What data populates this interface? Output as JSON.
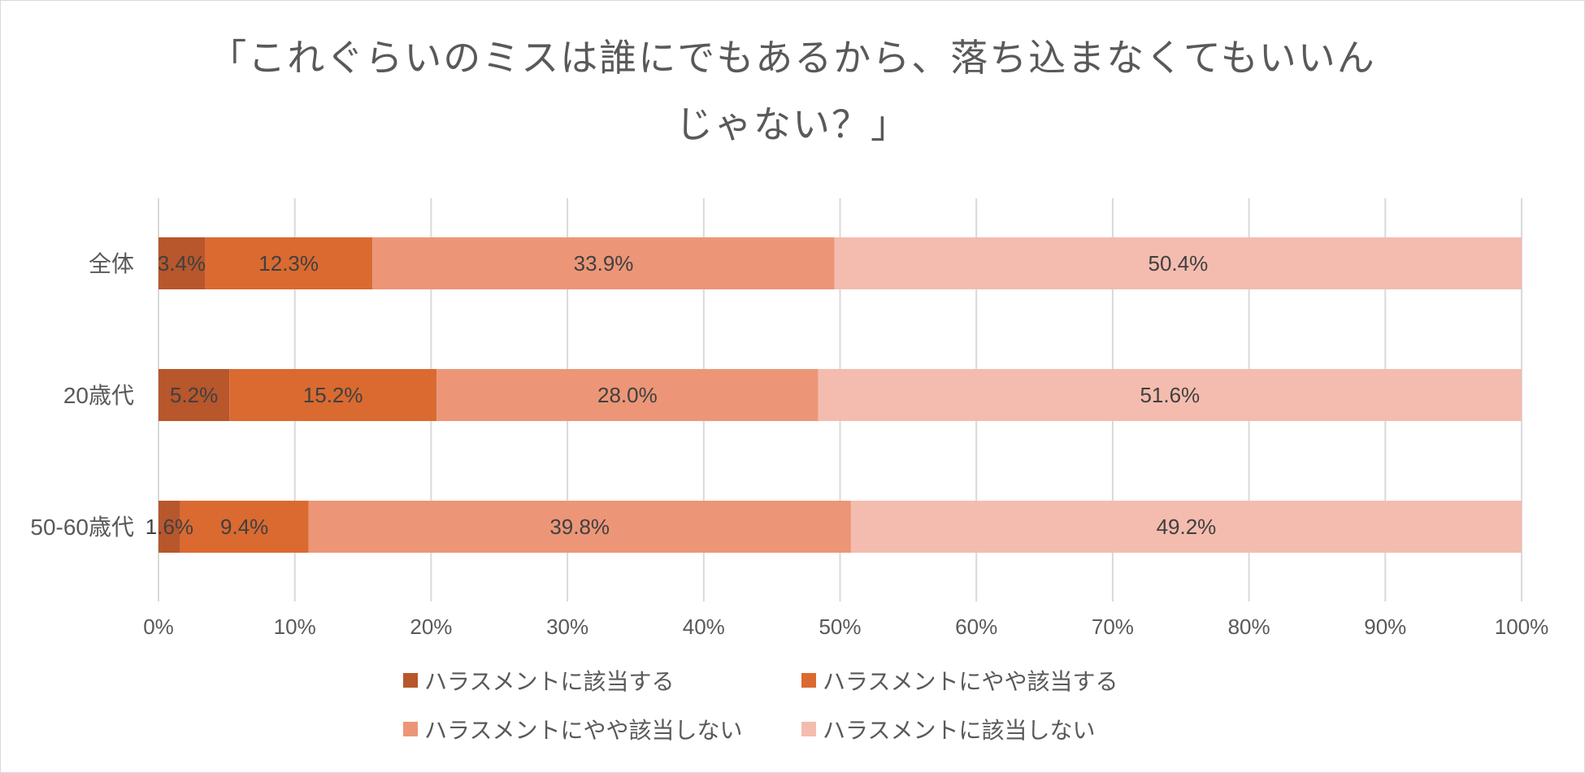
{
  "chart_data": {
    "type": "bar",
    "orientation": "horizontal",
    "stacked": "percent",
    "title_lines": [
      "「これぐらいのミスは誰にでもあるから、落ち込まなくてもいいん",
      "じゃない？」"
    ],
    "categories": [
      "全体",
      "20歳代",
      "50-60歳代"
    ],
    "series": [
      {
        "name": "ハラスメントに該当する",
        "color": "#b8562c",
        "values": [
          3.4,
          5.2,
          1.6
        ],
        "labels": [
          "3.4%",
          "5.2%",
          "1.6%"
        ]
      },
      {
        "name": "ハラスメントにやや該当する",
        "color": "#da6a30",
        "values": [
          12.3,
          15.2,
          9.4
        ],
        "labels": [
          "12.3%",
          "15.2%",
          "9.4%"
        ]
      },
      {
        "name": "ハラスメントにやや該当しない",
        "color": "#ec9677",
        "values": [
          33.9,
          28.0,
          39.8
        ],
        "labels": [
          "33.9%",
          "28.0%",
          "39.8%"
        ]
      },
      {
        "name": "ハラスメントに該当しない",
        "color": "#f4bcaf",
        "values": [
          50.4,
          51.6,
          49.2
        ],
        "labels": [
          "50.4%",
          "51.6%",
          "49.2%"
        ]
      }
    ],
    "xlim": [
      0,
      100
    ],
    "x_ticks": [
      0,
      10,
      20,
      30,
      40,
      50,
      60,
      70,
      80,
      90,
      100
    ],
    "x_tick_labels": [
      "0%",
      "10%",
      "20%",
      "30%",
      "40%",
      "50%",
      "60%",
      "70%",
      "80%",
      "90%",
      "100%"
    ],
    "grid": "vertical",
    "legend_position": "bottom"
  }
}
